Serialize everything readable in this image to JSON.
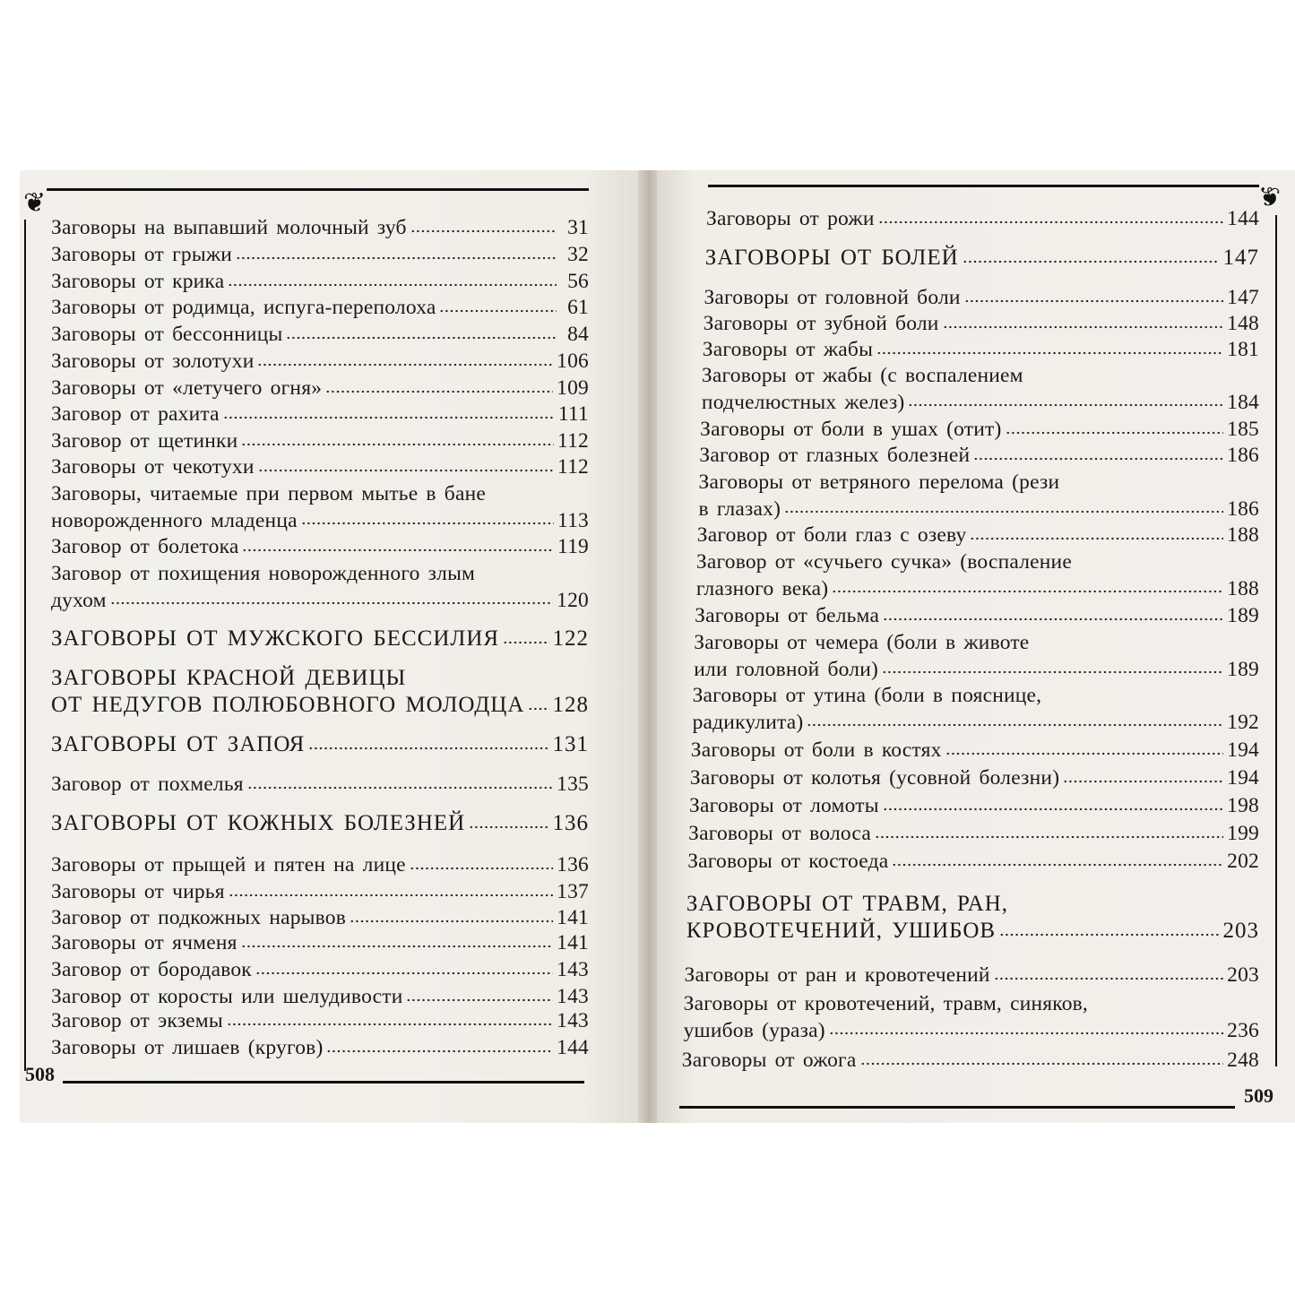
{
  "left_page": {
    "page_number": "508",
    "entries": [
      {
        "lines": [
          "Заговоры на выпавший молочный зуб"
        ],
        "page": "31"
      },
      {
        "lines": [
          "Заговоры от грыжи"
        ],
        "page": "32"
      },
      {
        "lines": [
          "Заговоры от крика"
        ],
        "page": "56"
      },
      {
        "lines": [
          "Заговоры от родимца, испуга-переполоха"
        ],
        "page": "61"
      },
      {
        "lines": [
          "Заговоры от бессонницы"
        ],
        "page": "84"
      },
      {
        "lines": [
          "Заговоры от золотухи"
        ],
        "page": "106"
      },
      {
        "lines": [
          "Заговоры от «летучего огня»"
        ],
        "page": "109"
      },
      {
        "lines": [
          "Заговор от рахита"
        ],
        "page": "111"
      },
      {
        "lines": [
          "Заговор от щетинки"
        ],
        "page": "112"
      },
      {
        "lines": [
          "Заговоры от чекотухи"
        ],
        "page": "112"
      },
      {
        "lines": [
          "Заговоры, читаемые при первом мытье в бане",
          "новорожденного младенца"
        ],
        "page": "113"
      },
      {
        "lines": [
          "Заговор от болетока"
        ],
        "page": "119"
      },
      {
        "lines": [
          "Заговор от похищения новорожденного злым",
          "духом"
        ],
        "page": "120"
      },
      {
        "lines": [
          "ЗАГОВОРЫ ОТ МУЖСКОГО БЕССИЛИЯ"
        ],
        "page": "122",
        "heading": true
      },
      {
        "lines": [
          "ЗАГОВОРЫ КРАСНОЙ ДЕВИЦЫ",
          "ОТ НЕДУГОВ ПОЛЮБОВНОГО МОЛОДЦА"
        ],
        "page": "128",
        "heading": true
      },
      {
        "lines": [
          "ЗАГОВОРЫ ОТ ЗАПОЯ"
        ],
        "page": "131",
        "heading": true
      },
      {
        "lines": [
          "Заговор от похмелья"
        ],
        "page": "135"
      },
      {
        "lines": [
          "ЗАГОВОРЫ ОТ КОЖНЫХ БОЛЕЗНЕЙ"
        ],
        "page": "136",
        "heading": true
      },
      {
        "lines": [
          "Заговоры от прыщей и пятен на лице"
        ],
        "page": "136"
      },
      {
        "lines": [
          "Заговоры от чирья"
        ],
        "page": "137"
      },
      {
        "lines": [
          "Заговор от подкожных нарывов"
        ],
        "page": "141"
      },
      {
        "lines": [
          "Заговоры от ячменя"
        ],
        "page": "141"
      },
      {
        "lines": [
          "Заговор от бородавок"
        ],
        "page": "143"
      },
      {
        "lines": [
          "Заговор от коросты или шелудивости"
        ],
        "page": "143"
      },
      {
        "lines": [
          "Заговор от экземы"
        ],
        "page": "143"
      },
      {
        "lines": [
          "Заговоры от лишаев (кругов)"
        ],
        "page": "144"
      }
    ]
  },
  "right_page": {
    "page_number": "509",
    "entries": [
      {
        "lines": [
          "Заговоры от рожи"
        ],
        "page": "144"
      },
      {
        "lines": [
          "ЗАГОВОРЫ ОТ БОЛЕЙ"
        ],
        "page": "147",
        "heading": true
      },
      {
        "lines": [
          "Заговоры от головной боли"
        ],
        "page": "147"
      },
      {
        "lines": [
          "Заговоры от зубной боли"
        ],
        "page": "148"
      },
      {
        "lines": [
          "Заговоры от жабы"
        ],
        "page": "181"
      },
      {
        "lines": [
          "Заговоры от жабы (с воспалением",
          "подчелюстных желез)"
        ],
        "page": "184"
      },
      {
        "lines": [
          "Заговоры от боли в ушах (отит)"
        ],
        "page": "185"
      },
      {
        "lines": [
          "Заговор от глазных болезней"
        ],
        "page": "186"
      },
      {
        "lines": [
          "Заговоры от ветряного перелома (рези",
          "в глазах)"
        ],
        "page": "186"
      },
      {
        "lines": [
          "Заговор от боли глаз с озеву"
        ],
        "page": "188"
      },
      {
        "lines": [
          "Заговор от «сучьего сучка» (воспаление",
          "глазного века)"
        ],
        "page": "188"
      },
      {
        "lines": [
          "Заговоры от бельма"
        ],
        "page": "189"
      },
      {
        "lines": [
          "Заговоры от чемера (боли в животе",
          "или головной боли)"
        ],
        "page": "189"
      },
      {
        "lines": [
          "Заговоры от утина (боли в пояснице,",
          "радикулита)"
        ],
        "page": "192"
      },
      {
        "lines": [
          "Заговоры от боли в костях"
        ],
        "page": "194"
      },
      {
        "lines": [
          "Заговоры от колотья (усовной болезни)"
        ],
        "page": "194"
      },
      {
        "lines": [
          "Заговоры от ломоты"
        ],
        "page": "198"
      },
      {
        "lines": [
          "Заговоры от волоса"
        ],
        "page": "199"
      },
      {
        "lines": [
          "Заговоры от костоеда"
        ],
        "page": "202"
      },
      {
        "lines": [
          "ЗАГОВОРЫ ОТ ТРАВМ, РАН,",
          "КРОВОТЕЧЕНИЙ, УШИБОВ"
        ],
        "page": "203",
        "heading": true
      },
      {
        "lines": [
          "Заговоры от ран и кровотечений"
        ],
        "page": "203"
      },
      {
        "lines": [
          "Заговоры от кровотечений, травм, синяков,",
          "ушибов (ураза)"
        ],
        "page": "236"
      },
      {
        "lines": [
          "Заговоры от ожога"
        ],
        "page": "248"
      }
    ]
  }
}
